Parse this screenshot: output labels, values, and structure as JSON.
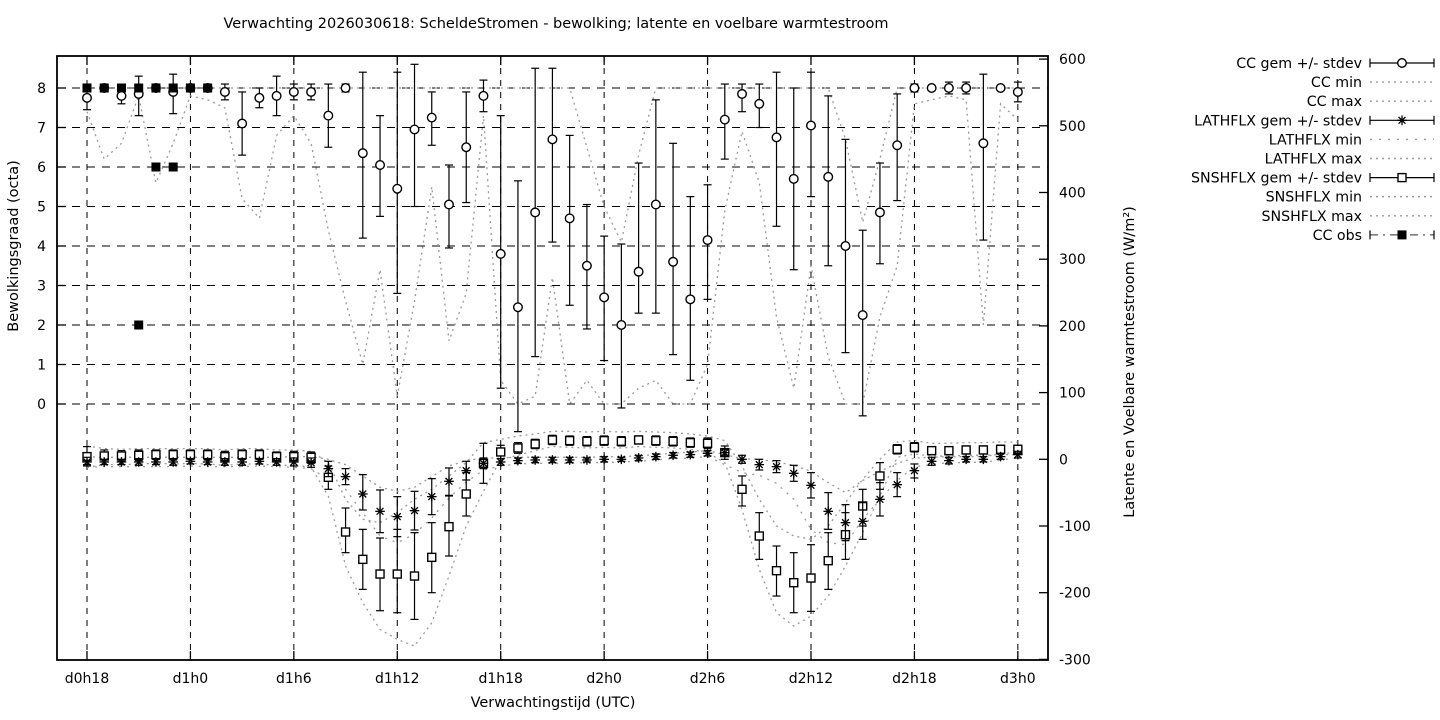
{
  "title": "Verwachting 2026030618: ScheldeStromen - bewolking; latente en voelbare warmtestroom",
  "xlabel": "Verwachtingstijd (UTC)",
  "ylabel_left": "Bewolkingsgraad (octa)",
  "ylabel_right": "Latente en Voelbare warmtestroom (W/m²)",
  "colors": {
    "foreground": "#000000",
    "minmax_dotted": "#9a9a9a",
    "obs_line": "#555555",
    "background": "#ffffff"
  },
  "legend": [
    {
      "label": "CC gem +/- stdev",
      "style": "errorbar",
      "marker": "circle"
    },
    {
      "label": "CC min",
      "style": "dots"
    },
    {
      "label": "CC max",
      "style": "dots"
    },
    {
      "label": "LATHFLX gem +/- stdev",
      "style": "errorbar",
      "marker": "asterisk"
    },
    {
      "label": "LATHFLX min",
      "style": "dots-sparse"
    },
    {
      "label": "LATHFLX max",
      "style": "dots"
    },
    {
      "label": "SNSHFLX gem +/- stdev",
      "style": "errorbar",
      "marker": "square-open"
    },
    {
      "label": "SNSHFLX min",
      "style": "dots"
    },
    {
      "label": "SNSHFLX max",
      "style": "dots"
    },
    {
      "label": "CC obs",
      "style": "obsline",
      "marker": "square-filled"
    }
  ],
  "chart_data": {
    "type": "line",
    "title": "Verwachting 2026030618: ScheldeStromen - bewolking; latente en voelbare warmtestroom",
    "x_unit": "forecast hour, d0h18=18 ... d3h0=72 (hourly)",
    "x_range": [
      16.26,
      73.74
    ],
    "x_ticks": [
      {
        "t": 18,
        "label": "d0h18"
      },
      {
        "t": 24,
        "label": "d1h0"
      },
      {
        "t": 30,
        "label": "d1h6"
      },
      {
        "t": 36,
        "label": "d1h12"
      },
      {
        "t": 42,
        "label": "d1h18"
      },
      {
        "t": 48,
        "label": "d2h0"
      },
      {
        "t": 54,
        "label": "d2h6"
      },
      {
        "t": 60,
        "label": "d2h12"
      },
      {
        "t": 66,
        "label": "d2h18"
      },
      {
        "t": 72,
        "label": "d3h0"
      }
    ],
    "y_left": {
      "label": "Bewolkingsgraad (octa)",
      "ticks": [
        0,
        1,
        2,
        3,
        4,
        5,
        6,
        7,
        8
      ],
      "grid": true
    },
    "y_right": {
      "label": "Latente en Voelbare warmtestroom (W/m²)",
      "ticks": [
        -300,
        -200,
        -100,
        0,
        100,
        200,
        300,
        400,
        500,
        600
      ],
      "grid": false
    },
    "hours": [
      18,
      19,
      20,
      21,
      22,
      23,
      24,
      25,
      26,
      27,
      28,
      29,
      30,
      31,
      32,
      33,
      34,
      35,
      36,
      37,
      38,
      39,
      40,
      41,
      42,
      43,
      44,
      45,
      46,
      47,
      48,
      49,
      50,
      51,
      52,
      53,
      54,
      55,
      56,
      57,
      58,
      59,
      60,
      61,
      62,
      63,
      64,
      65,
      66,
      67,
      68,
      69,
      70,
      71,
      72
    ],
    "cc_gem": [
      [
        18,
        7.75,
        7.45,
        8.1
      ],
      [
        19,
        8.0,
        7.9,
        8.1
      ],
      [
        20,
        7.8,
        7.6,
        8.0
      ],
      [
        21,
        7.85,
        7.3,
        8.3
      ],
      [
        22,
        8.0,
        7.9,
        8.1
      ],
      [
        23,
        7.9,
        7.35,
        8.35
      ],
      [
        24,
        8.0,
        7.9,
        8.1
      ],
      [
        25,
        8.0,
        7.9,
        8.1
      ],
      [
        26,
        7.9,
        7.7,
        8.1
      ],
      [
        27,
        7.1,
        6.3,
        7.9
      ],
      [
        28,
        7.75,
        7.5,
        8.0
      ],
      [
        29,
        7.8,
        7.3,
        8.3
      ],
      [
        30,
        7.9,
        7.7,
        8.1
      ],
      [
        31,
        7.9,
        7.7,
        8.1
      ],
      [
        32,
        7.3,
        6.5,
        8.1
      ],
      [
        33,
        8.0,
        7.9,
        8.1
      ],
      [
        34,
        6.35,
        4.2,
        8.4
      ],
      [
        35,
        6.05,
        4.75,
        7.3
      ],
      [
        36,
        5.45,
        2.8,
        8.4
      ],
      [
        37,
        6.95,
        5.0,
        8.6
      ],
      [
        38,
        7.25,
        6.55,
        7.9
      ],
      [
        39,
        5.05,
        3.95,
        6.05
      ],
      [
        40,
        6.5,
        5.1,
        7.9
      ],
      [
        41,
        7.8,
        7.4,
        8.2
      ],
      [
        42,
        3.8,
        0.4,
        7.3
      ],
      [
        43,
        2.45,
        -0.7,
        5.65
      ],
      [
        44,
        4.85,
        1.2,
        8.5
      ],
      [
        45,
        6.7,
        4.1,
        8.5
      ],
      [
        46,
        4.7,
        2.5,
        6.8
      ],
      [
        47,
        3.5,
        1.9,
        5.05
      ],
      [
        48,
        2.7,
        1.1,
        4.25
      ],
      [
        49,
        2.0,
        -0.1,
        4.05
      ],
      [
        50,
        3.35,
        2.3,
        6.1
      ],
      [
        51,
        5.05,
        2.3,
        7.7
      ],
      [
        52,
        3.6,
        1.25,
        6.6
      ],
      [
        53,
        2.65,
        0.6,
        5.25
      ],
      [
        54,
        4.15,
        2.65,
        5.55
      ],
      [
        55,
        7.2,
        6.2,
        8.1
      ],
      [
        56,
        7.85,
        7.4,
        8.1
      ],
      [
        57,
        7.6,
        7.0,
        8.1
      ],
      [
        58,
        6.75,
        4.5,
        8.4
      ],
      [
        59,
        5.7,
        3.4,
        8.0
      ],
      [
        60,
        7.05,
        5.25,
        8.4
      ],
      [
        61,
        5.75,
        3.5,
        7.8
      ],
      [
        62,
        4.0,
        1.3,
        6.7
      ],
      [
        63,
        2.25,
        -0.3,
        4.4
      ],
      [
        64,
        4.85,
        3.55,
        6.1
      ],
      [
        65,
        6.55,
        5.15,
        7.85
      ],
      [
        66,
        8.0,
        7.9,
        8.1
      ],
      [
        67,
        8.0,
        7.95,
        8.05
      ],
      [
        68,
        8.0,
        7.85,
        8.15
      ],
      [
        69,
        8.0,
        7.85,
        8.15
      ],
      [
        70,
        6.6,
        4.15,
        8.35
      ],
      [
        71,
        8.0,
        7.95,
        8.05
      ],
      [
        72,
        7.9,
        7.65,
        8.15
      ]
    ],
    "cc_min": [
      7.4,
      6.2,
      6.6,
      7.8,
      5.6,
      6.6,
      7.8,
      7.7,
      7.5,
      5.2,
      4.7,
      6.8,
      7.3,
      6.6,
      4.4,
      2.6,
      1.0,
      3.4,
      0.2,
      2.6,
      5.5,
      1.6,
      2.8,
      7.3,
      0.6,
      0.0,
      0.2,
      3.2,
      0.0,
      0.6,
      0.0,
      0.0,
      0.4,
      0.6,
      0.0,
      0.0,
      1.0,
      4.9,
      6.9,
      5.6,
      2.2,
      0.4,
      3.5,
      1.2,
      0.0,
      0.0,
      2.2,
      3.5,
      7.6,
      7.7,
      7.8,
      7.7,
      2.0,
      7.6,
      7.2
    ],
    "cc_max": [
      8,
      8,
      8,
      8,
      8,
      8,
      8,
      8,
      8,
      8,
      8,
      8,
      8,
      8,
      8,
      8,
      8,
      8,
      8,
      8,
      8,
      8,
      8,
      8,
      8,
      8,
      8,
      8,
      8,
      6.5,
      5.0,
      4.1,
      6.3,
      8,
      8,
      8,
      8,
      8,
      8,
      8,
      8,
      8,
      8,
      8,
      6.7,
      4.6,
      6.2,
      8,
      8,
      8,
      8,
      8,
      8,
      8,
      8
    ],
    "lathflx_gem": [
      [
        18,
        -4,
        -10,
        3
      ],
      [
        19,
        -4,
        -8,
        0
      ],
      [
        20,
        -4,
        -8,
        0
      ],
      [
        21,
        -4,
        -9,
        1
      ],
      [
        22,
        -4,
        -8,
        0
      ],
      [
        23,
        -4,
        -9,
        1
      ],
      [
        24,
        -3,
        -7,
        1
      ],
      [
        25,
        -4,
        -8,
        0
      ],
      [
        26,
        -4,
        -9,
        1
      ],
      [
        27,
        -4,
        -9,
        1
      ],
      [
        28,
        -3,
        -7,
        1
      ],
      [
        29,
        -4,
        -9,
        1
      ],
      [
        30,
        -4,
        -10,
        2
      ],
      [
        31,
        -5,
        -12,
        2
      ],
      [
        32,
        -14,
        -26,
        -3
      ],
      [
        33,
        -26,
        -38,
        -14
      ],
      [
        34,
        -52,
        -76,
        -23
      ],
      [
        35,
        -78,
        -110,
        -46
      ],
      [
        36,
        -86,
        -116,
        -56
      ],
      [
        37,
        -77,
        -106,
        -48
      ],
      [
        38,
        -56,
        -83,
        -29
      ],
      [
        39,
        -33,
        -54,
        -13
      ],
      [
        40,
        -17,
        -31,
        -3
      ],
      [
        41,
        -6,
        -14,
        2
      ],
      [
        42,
        -4,
        -9,
        1
      ],
      [
        43,
        -2,
        -6,
        2
      ],
      [
        44,
        -1,
        -5,
        3
      ],
      [
        45,
        -1,
        -5,
        3
      ],
      [
        46,
        -1,
        -5,
        3
      ],
      [
        47,
        -1,
        -4,
        2
      ],
      [
        48,
        0,
        -4,
        4
      ],
      [
        49,
        0,
        -3,
        3
      ],
      [
        50,
        2,
        -2,
        6
      ],
      [
        51,
        4,
        0,
        8
      ],
      [
        52,
        6,
        2,
        10
      ],
      [
        53,
        7,
        3,
        11
      ],
      [
        54,
        9,
        5,
        13
      ],
      [
        55,
        10,
        6,
        15
      ],
      [
        56,
        0,
        -6,
        6
      ],
      [
        57,
        -8,
        -16,
        0
      ],
      [
        58,
        -11,
        -20,
        -2
      ],
      [
        59,
        -21,
        -33,
        -9
      ],
      [
        60,
        -39,
        -58,
        -20
      ],
      [
        61,
        -78,
        -105,
        -50
      ],
      [
        62,
        -95,
        -122,
        -68
      ],
      [
        63,
        -93,
        -120,
        -65
      ],
      [
        64,
        -60,
        -85,
        -35
      ],
      [
        65,
        -38,
        -56,
        -20
      ],
      [
        66,
        -17,
        -28,
        -7
      ],
      [
        67,
        -3,
        -9,
        3
      ],
      [
        68,
        -2,
        -7,
        3
      ],
      [
        69,
        0,
        -4,
        4
      ],
      [
        70,
        0,
        -4,
        4
      ],
      [
        71,
        4,
        0,
        8
      ],
      [
        72,
        7,
        2,
        12
      ]
    ],
    "lathflx_min": [
      -12,
      -11,
      -11,
      -11,
      -11,
      -11,
      -10,
      -11,
      -11,
      -11,
      -10,
      -11,
      -12,
      -14,
      -30,
      -45,
      -80,
      -115,
      -125,
      -112,
      -88,
      -58,
      -34,
      -16,
      -10,
      -7,
      -6,
      -6,
      -6,
      -5,
      -5,
      -4,
      -3,
      -1,
      1,
      2,
      4,
      -8,
      -20,
      -24,
      -36,
      -60,
      -105,
      -125,
      -128,
      -90,
      -60,
      -32,
      -11,
      -8,
      -5,
      -5,
      -4,
      -1,
      2
    ],
    "lathflx_max": [
      4,
      3,
      3,
      3,
      3,
      3,
      3,
      3,
      3,
      3,
      3,
      3,
      4,
      4,
      0,
      -8,
      -25,
      -42,
      -48,
      -42,
      -26,
      -10,
      -2,
      2,
      2,
      3,
      3,
      3,
      3,
      3,
      4,
      4,
      5,
      7,
      9,
      11,
      13,
      7,
      1,
      0,
      -4,
      -9,
      -18,
      -35,
      -50,
      -32,
      -18,
      -6,
      2,
      3,
      4,
      4,
      4,
      8,
      11
    ],
    "snshflx_gem": [
      [
        18,
        4,
        -8,
        19
      ],
      [
        19,
        5,
        -4,
        14
      ],
      [
        20,
        5,
        -3,
        13
      ],
      [
        21,
        6,
        -2,
        14
      ],
      [
        22,
        7,
        0,
        14
      ],
      [
        23,
        7,
        -1,
        14
      ],
      [
        24,
        7,
        0,
        14
      ],
      [
        25,
        7,
        -1,
        14
      ],
      [
        26,
        4,
        -4,
        12
      ],
      [
        27,
        7,
        0,
        14
      ],
      [
        28,
        7,
        0,
        14
      ],
      [
        29,
        4,
        -4,
        11
      ],
      [
        30,
        4,
        -4,
        12
      ],
      [
        31,
        3,
        -6,
        11
      ],
      [
        32,
        -27,
        -45,
        -10
      ],
      [
        33,
        -109,
        -140,
        -73
      ],
      [
        34,
        -150,
        -195,
        -105
      ],
      [
        35,
        -172,
        -227,
        -118
      ],
      [
        36,
        -172,
        -230,
        -105
      ],
      [
        37,
        -175,
        -240,
        -110
      ],
      [
        38,
        -147,
        -200,
        -95
      ],
      [
        39,
        -101,
        -145,
        -55
      ],
      [
        40,
        -52,
        -85,
        -20
      ],
      [
        41,
        -6,
        -36,
        24
      ],
      [
        42,
        11,
        1,
        21
      ],
      [
        43,
        17,
        9,
        25
      ],
      [
        44,
        23,
        16,
        30
      ],
      [
        45,
        29,
        22,
        36
      ],
      [
        46,
        28,
        21,
        35
      ],
      [
        47,
        27,
        20,
        34
      ],
      [
        48,
        28,
        21,
        35
      ],
      [
        49,
        27,
        20,
        34
      ],
      [
        50,
        29,
        23,
        35
      ],
      [
        51,
        28,
        21,
        35
      ],
      [
        52,
        27,
        20,
        34
      ],
      [
        53,
        25,
        18,
        32
      ],
      [
        54,
        24,
        16,
        32
      ],
      [
        55,
        10,
        0,
        20
      ],
      [
        56,
        -45,
        -70,
        -25
      ],
      [
        57,
        -115,
        -150,
        -80
      ],
      [
        58,
        -167,
        -205,
        -130
      ],
      [
        59,
        -185,
        -230,
        -140
      ],
      [
        60,
        -178,
        -228,
        -128
      ],
      [
        61,
        -152,
        -195,
        -110
      ],
      [
        62,
        -113,
        -150,
        -80
      ],
      [
        63,
        -70,
        -100,
        -45
      ],
      [
        64,
        -25,
        -45,
        -5
      ],
      [
        65,
        15,
        8,
        22
      ],
      [
        66,
        18,
        11,
        25
      ],
      [
        67,
        13,
        7,
        19
      ],
      [
        68,
        13,
        7,
        19
      ],
      [
        69,
        14,
        8,
        20
      ],
      [
        70,
        14,
        8,
        20
      ],
      [
        71,
        15,
        9,
        21
      ],
      [
        72,
        15,
        9,
        21
      ]
    ],
    "snshflx_min": [
      -12,
      -8,
      -8,
      -7,
      -6,
      -7,
      -6,
      -7,
      -9,
      -7,
      -7,
      -9,
      -9,
      -12,
      -55,
      -160,
      -215,
      -255,
      -270,
      -280,
      -245,
      -175,
      -100,
      -48,
      0,
      6,
      13,
      19,
      18,
      17,
      18,
      17,
      19,
      18,
      17,
      15,
      10,
      -5,
      -75,
      -165,
      -230,
      -250,
      -235,
      -205,
      -160,
      -110,
      -55,
      3,
      8,
      5,
      5,
      6,
      6,
      7,
      7
    ],
    "snshflx_max": [
      20,
      16,
      15,
      16,
      16,
      16,
      16,
      16,
      14,
      16,
      16,
      14,
      14,
      12,
      -5,
      -60,
      -90,
      -95,
      -80,
      -60,
      -45,
      -25,
      -5,
      25,
      30,
      35,
      38,
      42,
      42,
      41,
      42,
      41,
      42,
      41,
      40,
      38,
      35,
      28,
      -10,
      -60,
      -100,
      -115,
      -120,
      -100,
      -65,
      -30,
      0,
      26,
      28,
      24,
      24,
      25,
      25,
      26,
      26
    ],
    "cc_obs": [
      [
        18,
        8
      ],
      [
        19,
        8
      ],
      [
        20,
        8
      ],
      [
        21,
        8
      ],
      [
        22,
        8
      ],
      [
        23,
        8
      ],
      [
        24,
        8
      ],
      [
        25,
        8
      ],
      [
        21,
        2
      ],
      [
        22,
        6
      ],
      [
        23,
        6
      ]
    ],
    "cc_obs_line": [
      [
        18,
        8
      ],
      [
        19,
        8
      ],
      [
        20,
        8
      ],
      [
        21,
        8
      ],
      [
        22,
        8
      ],
      [
        23,
        8
      ],
      [
        24,
        8
      ],
      [
        25,
        8
      ]
    ]
  }
}
